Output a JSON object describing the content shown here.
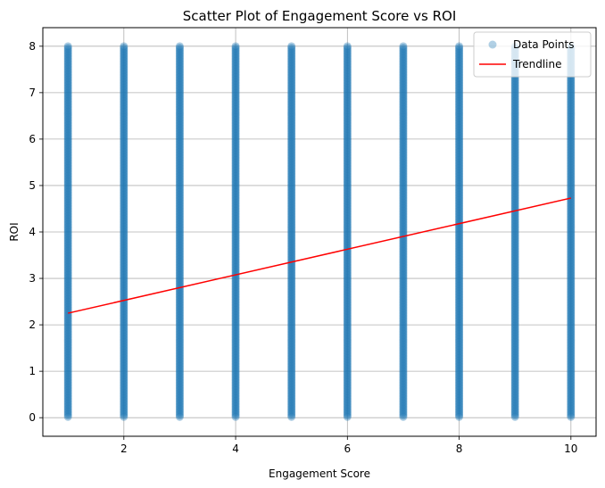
{
  "chart_data": {
    "type": "scatter",
    "title": "Scatter Plot of Engagement Score vs ROI",
    "xlabel": "Engagement Score",
    "ylabel": "ROI",
    "xlim": [
      0.55,
      10.45
    ],
    "ylim": [
      -0.4,
      8.4
    ],
    "xticks": [
      2,
      4,
      6,
      8,
      10
    ],
    "yticks": [
      0,
      1,
      2,
      3,
      4,
      5,
      6,
      7,
      8
    ],
    "grid": true,
    "legend_position": "top-right",
    "series": [
      {
        "name": "Data Points",
        "kind": "scatter",
        "color": "#1f77b4",
        "x_values": [
          1,
          2,
          3,
          4,
          5,
          6,
          7,
          8,
          9,
          10
        ],
        "y_range": [
          0,
          8
        ]
      },
      {
        "name": "Trendline",
        "kind": "line",
        "color": "#ff0000",
        "x": [
          1,
          10
        ],
        "y": [
          2.25,
          4.73
        ]
      }
    ]
  }
}
